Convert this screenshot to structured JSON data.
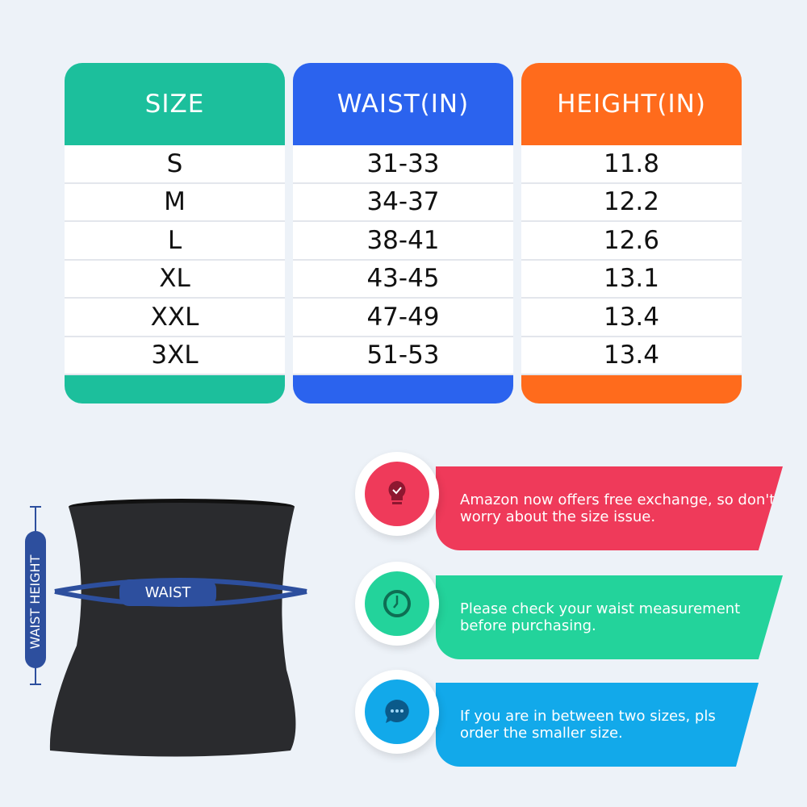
{
  "colors": {
    "size": "#1cbf9c",
    "waist": "#2b63ee",
    "height": "#ff6b1c",
    "tip1": "#ef3a5a",
    "tip2": "#23d39b",
    "tip3": "#12a9ea",
    "figure_blue": "#2d4f9e"
  },
  "table": {
    "headers": [
      "SIZE",
      "WAIST(IN)",
      "HEIGHT(IN)"
    ],
    "sizes": [
      "S",
      "M",
      "L",
      "XL",
      "XXL",
      "3XL"
    ],
    "waist": [
      "31-33",
      "34-37",
      "38-41",
      "43-45",
      "47-49",
      "51-53"
    ],
    "height": [
      "11.8",
      "12.2",
      "12.6",
      "13.1",
      "13.4",
      "13.4"
    ]
  },
  "figure": {
    "waist_label": "WAIST",
    "height_label": "WAIST HEIGHT"
  },
  "tips": [
    {
      "icon": "lightbulb-check-icon",
      "text": "Amazon now offers free exchange, so don't worry about the size issue."
    },
    {
      "icon": "clock-icon",
      "text": "Please check your waist measurement before purchasing."
    },
    {
      "icon": "chat-bubble-icon",
      "text": "If you are in between two sizes, pls order the smaller size."
    }
  ]
}
